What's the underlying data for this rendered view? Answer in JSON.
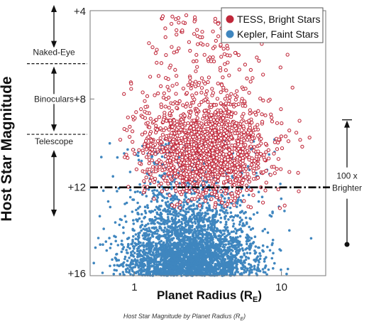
{
  "caption": {
    "prefix": "Host Star Magnitude by Planet Radius (R",
    "sub": "E",
    "suffix": ")"
  },
  "chart_data": {
    "type": "scatter",
    "xlabel": {
      "prefix": "Planet Radius (R",
      "sub": "E",
      "suffix": ")"
    },
    "ylabel": "Host Star Magnitude",
    "x_scale": "log",
    "xlim": [
      0.5,
      20
    ],
    "ylim": [
      16,
      4
    ],
    "y_axis_inverted": true,
    "x_ticks": [
      {
        "value": 1,
        "label": "1"
      },
      {
        "value": 10,
        "label": "10"
      }
    ],
    "y_ticks": [
      {
        "value": 4,
        "label": "+4"
      },
      {
        "value": 8,
        "label": "+8"
      },
      {
        "value": 12,
        "label": "+12"
      },
      {
        "value": 16,
        "label": "+16"
      }
    ],
    "legend": {
      "position": "top-right",
      "entries": [
        {
          "label": "TESS, Bright Stars",
          "color": "#c0283a"
        },
        {
          "label": "Kepler, Faint Stars",
          "color": "#3f86bf"
        }
      ]
    },
    "series": [
      {
        "name": "TESS, Bright Stars",
        "marker": "open-circle",
        "color": "#c0283a",
        "approx_point_count": 1800,
        "distribution": {
          "log10_radius_mean": 0.48,
          "log10_radius_sd": 0.22,
          "magnitude_center": 10.3,
          "magnitude_sd": 1.1,
          "magnitude_range": [
            4.2,
            13.0
          ],
          "radius_range": [
            0.8,
            17
          ]
        }
      },
      {
        "name": "Kepler, Faint Stars",
        "marker": "filled-circle",
        "color": "#3f86bf",
        "approx_point_count": 3600,
        "distribution": {
          "log10_radius_mean": 0.38,
          "log10_radius_sd": 0.22,
          "magnitude_center": 14.8,
          "magnitude_range": [
            9.8,
            16.0
          ],
          "radius_range": [
            0.5,
            20
          ]
        }
      }
    ],
    "annotations": {
      "detection_zones": [
        {
          "label": "Naked-Eye",
          "magnitude_range": [
            4,
            6.4
          ]
        },
        {
          "label": "Binoculars",
          "magnitude_range": [
            6.4,
            9.6
          ]
        },
        {
          "label": "Telescope",
          "magnitude_range": [
            9.6,
            16
          ]
        }
      ],
      "zone_boundaries": [
        6.4,
        9.6
      ],
      "threshold_line_magnitude": 12,
      "brightness_note": {
        "text_lines": [
          "100 x",
          "Brighter"
        ],
        "magnitude_range": [
          9.2,
          14.2
        ]
      }
    }
  }
}
